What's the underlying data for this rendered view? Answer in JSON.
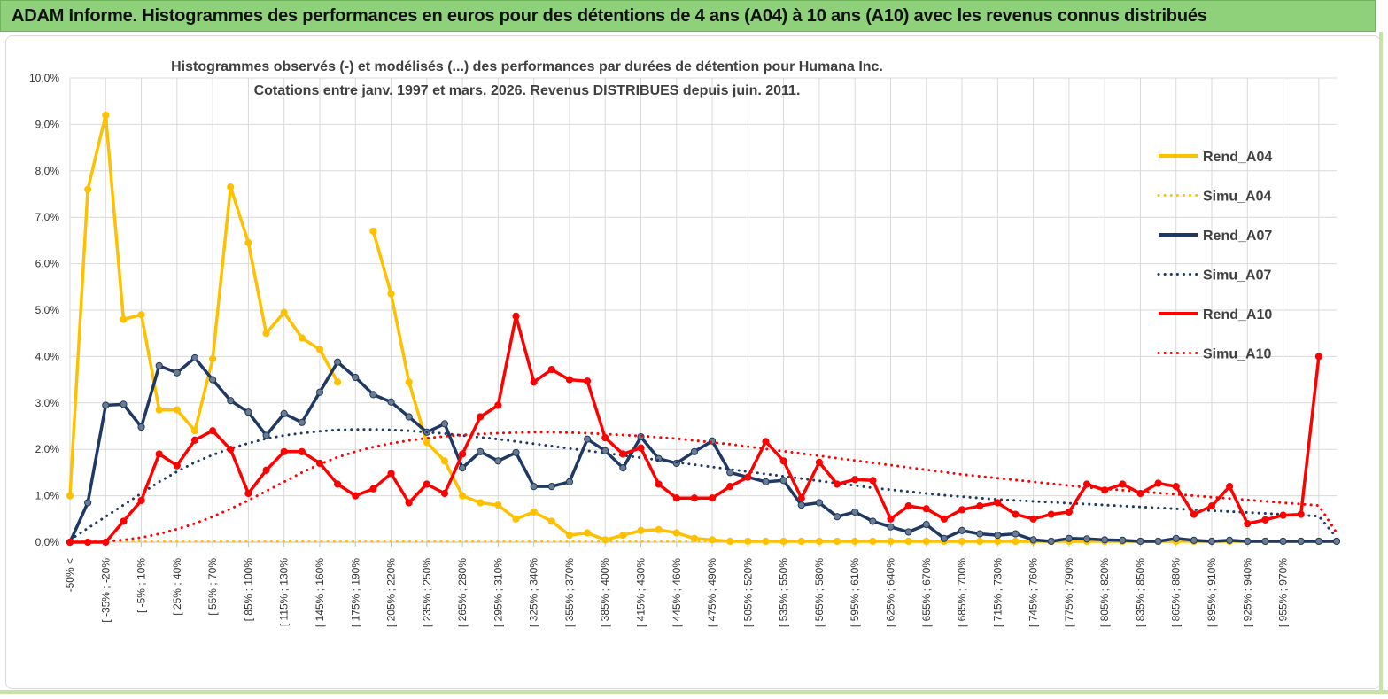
{
  "banner": {
    "title": "ADAM Informe. Histogrammes des performances en euros pour des détentions de 4 ans (A04) à 10 ans (A10) avec les revenus connus distribués"
  },
  "colors": {
    "A04": "#ffc000",
    "A07": "#1f3864",
    "A10": "#ff0000",
    "grid": "#d9d9d9",
    "banner": "#8fd07a"
  },
  "chart_data": {
    "type": "line",
    "title": "Histogrammes observés (-) et modélisés (...) des performances par durées de détention pour Humana Inc.",
    "subtitle": "Cotations entre janv. 1997 et mars. 2026. Revenus DISTRIBUES depuis juin. 2011.",
    "xlabel": "",
    "ylabel": "",
    "ylim": [
      0,
      10
    ],
    "y_ticks": [
      "0,0%",
      "1,0%",
      "2,0%",
      "3,0%",
      "4,0%",
      "5,0%",
      "6,0%",
      "7,0%",
      "8,0%",
      "9,0%",
      "10,0%"
    ],
    "legend_position": "right",
    "grid": true,
    "x_labels": [
      "-50% <",
      "[ -35% ; -20%",
      "[ -5% ; 10%",
      "[ 25% ; 40%",
      "[ 55% ; 70%",
      "[ 85% ; 100%",
      "[ 115% ; 130%",
      "[ 145% ; 160%",
      "[ 175% ; 190%",
      "[ 205% ; 220%",
      "[ 235% ; 250%",
      "[ 265% ; 280%",
      "[ 295% ; 310%",
      "[ 325% ; 340%",
      "[ 355% ; 370%",
      "[ 385% ; 400%",
      "[ 415% ; 430%",
      "[ 445% ; 460%",
      "[ 475% ; 490%",
      "[ 505% ; 520%",
      "[ 535% ; 550%",
      "[ 565% ; 580%",
      "[ 595% ; 610%",
      "[ 625% ; 640%",
      "[ 655% ; 670%",
      "[ 685% ; 700%",
      "[ 715% ; 730%",
      "[ 745% ; 760%",
      "[ 775% ; 790%",
      "[ 805% ; 820%",
      "[ 835% ; 850%",
      "[ 865% ; 880%",
      "[ 895% ; 910%",
      "[ 925% ; 940%",
      "[ 955% ; 970%"
    ],
    "n_categories": 72,
    "series": [
      {
        "name": "Rend_A04",
        "style": "solid",
        "color_key": "A04",
        "values": [
          1.0,
          7.6,
          9.2,
          4.8,
          4.9,
          2.85,
          2.85,
          2.4,
          3.95,
          7.65,
          6.45,
          4.5,
          4.95,
          4.4,
          4.15,
          3.45,
          null,
          6.7,
          5.35,
          3.45,
          2.15,
          1.75,
          1.0,
          0.85,
          0.8,
          0.5,
          0.65,
          0.45,
          0.15,
          0.2,
          0.05,
          0.15,
          0.25,
          0.27,
          0.2,
          0.08,
          0.05,
          0.02,
          0.02,
          0.02,
          0.02,
          0.02,
          0.02,
          0.02,
          0.02,
          0.02,
          0.02,
          0.02,
          0.02,
          0.02,
          0.02,
          0.02,
          0.02,
          0.02,
          0.02,
          0.02,
          0.02,
          0.02,
          0.02,
          0.02,
          0.02,
          0.02,
          0.02,
          0.02,
          0.02,
          0.02,
          0.02,
          0.02,
          0.02,
          0.02,
          0.02,
          0.02
        ]
      },
      {
        "name": "Simu_A04",
        "style": "dotted",
        "color_key": "A04",
        "values": [
          0.02,
          0.02,
          0.02,
          0.02,
          0.02,
          0.02,
          0.02,
          0.02,
          0.02,
          0.02,
          0.02,
          0.02,
          0.02,
          0.02,
          0.02,
          0.02,
          0.02,
          0.02,
          0.02,
          0.02,
          0.02,
          0.02,
          0.02,
          0.02,
          0.02,
          0.02,
          0.02,
          0.02,
          0.02,
          0.02,
          0.02,
          0.02,
          0.02,
          0.02,
          0.02,
          0.02,
          0.02,
          0.02,
          0.02,
          0.02,
          0.02,
          0.02,
          0.02,
          0.02,
          0.02,
          0.02,
          0.02,
          0.02,
          0.02,
          0.02,
          0.02,
          0.02,
          0.02,
          0.02,
          0.02,
          0.02,
          0.02,
          0.02,
          0.02,
          0.02,
          0.02,
          0.02,
          0.02,
          0.02,
          0.02,
          0.02,
          0.02,
          0.02,
          0.02,
          0.02,
          0.02,
          0.02
        ]
      },
      {
        "name": "Rend_A07",
        "style": "solid",
        "color_key": "A07",
        "values": [
          0.0,
          0.85,
          2.95,
          2.97,
          2.48,
          3.8,
          3.65,
          3.97,
          3.5,
          3.05,
          2.8,
          2.3,
          2.77,
          2.58,
          3.23,
          3.88,
          3.55,
          3.18,
          3.02,
          2.7,
          2.37,
          2.55,
          1.6,
          1.95,
          1.75,
          1.93,
          1.2,
          1.2,
          1.3,
          2.22,
          1.97,
          1.6,
          2.27,
          1.8,
          1.7,
          1.95,
          2.18,
          1.5,
          1.4,
          1.3,
          1.33,
          0.8,
          0.85,
          0.55,
          0.65,
          0.45,
          0.33,
          0.22,
          0.38,
          0.08,
          0.25,
          0.18,
          0.15,
          0.18,
          0.05,
          0.02,
          0.08,
          0.07,
          0.05,
          0.04,
          0.02,
          0.02,
          0.08,
          0.04,
          0.02,
          0.04,
          0.02,
          0.02,
          0.02,
          0.02,
          0.02,
          0.02
        ]
      },
      {
        "name": "Simu_A07",
        "style": "dotted",
        "color_key": "A07",
        "values": [
          0.05,
          0.3,
          0.55,
          0.8,
          1.05,
          1.3,
          1.52,
          1.72,
          1.88,
          2.02,
          2.13,
          2.23,
          2.3,
          2.35,
          2.39,
          2.42,
          2.43,
          2.43,
          2.42,
          2.4,
          2.37,
          2.34,
          2.3,
          2.26,
          2.22,
          2.17,
          2.12,
          2.07,
          2.02,
          1.97,
          1.92,
          1.87,
          1.82,
          1.77,
          1.72,
          1.67,
          1.62,
          1.57,
          1.52,
          1.47,
          1.42,
          1.37,
          1.32,
          1.27,
          1.22,
          1.17,
          1.13,
          1.09,
          1.05,
          1.01,
          0.98,
          0.95,
          0.92,
          0.9,
          0.88,
          0.86,
          0.84,
          0.82,
          0.8,
          0.78,
          0.76,
          0.74,
          0.72,
          0.7,
          0.68,
          0.66,
          0.64,
          0.62,
          0.6,
          0.58,
          0.56,
          0.1
        ]
      },
      {
        "name": "Rend_A10",
        "style": "solid",
        "color_key": "A10",
        "values": [
          0.0,
          0.0,
          0.0,
          0.45,
          0.9,
          1.9,
          1.65,
          2.2,
          2.4,
          2.0,
          1.05,
          1.55,
          1.95,
          1.95,
          1.7,
          1.25,
          1.0,
          1.15,
          1.48,
          0.85,
          1.25,
          1.05,
          1.9,
          2.7,
          2.95,
          4.87,
          3.45,
          3.72,
          3.5,
          3.47,
          2.25,
          1.9,
          2.03,
          1.25,
          0.95,
          0.95,
          0.95,
          1.2,
          1.4,
          2.17,
          1.75,
          0.95,
          1.72,
          1.25,
          1.35,
          1.33,
          0.5,
          0.78,
          0.72,
          0.5,
          0.7,
          0.78,
          0.85,
          0.6,
          0.5,
          0.6,
          0.65,
          1.25,
          1.12,
          1.25,
          1.05,
          1.27,
          1.2,
          0.6,
          0.78,
          1.2,
          0.4,
          0.48,
          0.58,
          0.6,
          4.0,
          null
        ]
      },
      {
        "name": "Simu_A10",
        "style": "dotted",
        "color_key": "A10",
        "values": [
          0.0,
          0.0,
          0.02,
          0.05,
          0.1,
          0.18,
          0.28,
          0.4,
          0.55,
          0.72,
          0.9,
          1.1,
          1.3,
          1.5,
          1.68,
          1.83,
          1.95,
          2.05,
          2.13,
          2.19,
          2.24,
          2.28,
          2.31,
          2.33,
          2.35,
          2.36,
          2.37,
          2.37,
          2.36,
          2.35,
          2.33,
          2.31,
          2.29,
          2.26,
          2.23,
          2.19,
          2.15,
          2.11,
          2.06,
          2.01,
          1.96,
          1.91,
          1.86,
          1.81,
          1.76,
          1.71,
          1.66,
          1.61,
          1.56,
          1.51,
          1.46,
          1.42,
          1.38,
          1.34,
          1.3,
          1.26,
          1.22,
          1.18,
          1.15,
          1.12,
          1.09,
          1.06,
          1.03,
          1.0,
          0.97,
          0.94,
          0.91,
          0.88,
          0.85,
          0.82,
          0.79,
          0.2
        ]
      }
    ]
  }
}
